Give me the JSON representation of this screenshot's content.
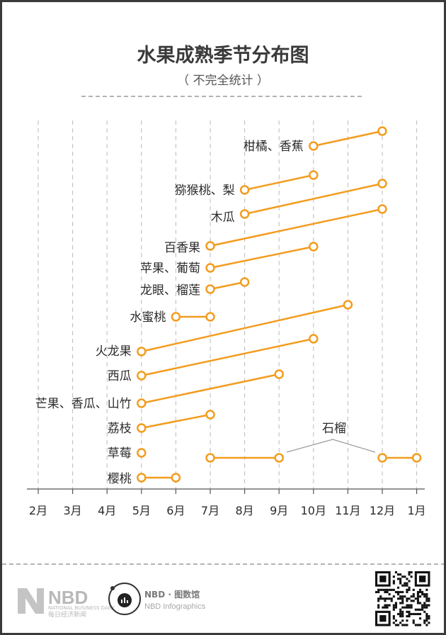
{
  "chart_data": {
    "type": "range-dumbbell",
    "title": "水果成熟季节分布图",
    "subtitle": "（ 不完全统计 ）",
    "x_categories": [
      "2月",
      "3月",
      "4月",
      "5月",
      "6月",
      "7月",
      "8月",
      "9月",
      "10月",
      "11月",
      "12月",
      "1月"
    ],
    "series": [
      {
        "name": "柑橘、香蕉",
        "ranges": [
          [
            "10月",
            "12月"
          ]
        ]
      },
      {
        "name": "猕猴桃、梨",
        "ranges": [
          [
            "8月",
            "10月"
          ]
        ]
      },
      {
        "name": "木瓜",
        "ranges": [
          [
            "8月",
            "12月"
          ]
        ]
      },
      {
        "name": "百香果",
        "ranges": [
          [
            "7月",
            "12月"
          ]
        ]
      },
      {
        "name": "苹果、葡萄",
        "ranges": [
          [
            "7月",
            "10月"
          ]
        ]
      },
      {
        "name": "龙眼、榴莲",
        "ranges": [
          [
            "7月",
            "8月"
          ]
        ]
      },
      {
        "name": "水蜜桃",
        "ranges": [
          [
            "6月",
            "7月"
          ]
        ]
      },
      {
        "name": "火龙果",
        "ranges": [
          [
            "5月",
            "11月"
          ]
        ]
      },
      {
        "name": "西瓜",
        "ranges": [
          [
            "5月",
            "10月"
          ]
        ]
      },
      {
        "name": "芒果、香瓜、山竹",
        "ranges": [
          [
            "5月",
            "9月"
          ]
        ]
      },
      {
        "name": "荔枝",
        "ranges": [
          [
            "5月",
            "7月"
          ]
        ]
      },
      {
        "name": "草莓",
        "ranges": [
          [
            "5月",
            "5月"
          ]
        ]
      },
      {
        "name": "石榴",
        "ranges": [
          [
            "7月",
            "9月"
          ],
          [
            "12月",
            "1月"
          ]
        ]
      },
      {
        "name": "樱桃",
        "ranges": [
          [
            "5月",
            "6月"
          ]
        ]
      }
    ],
    "annotation": "石榴",
    "accent_color": "#f39c1e",
    "grid": "dashed vertical"
  },
  "footer": {
    "logo_main": "NBD",
    "logo_small": "NATIONAL BUSINESS DAILY",
    "logo_cn": "每日经济新闻",
    "brand2_main": "NBD · 图数馆",
    "brand2_sub": "NBD Infographics"
  }
}
